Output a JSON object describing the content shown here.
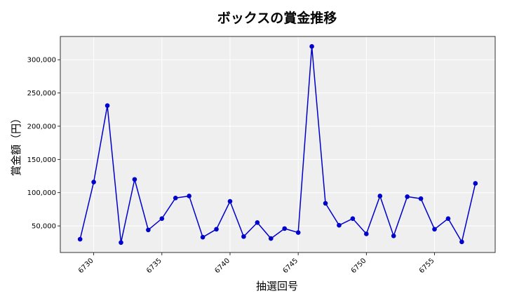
{
  "chart_data": {
    "type": "line",
    "title": "ボックスの賞金推移",
    "xlabel": "抽選回号",
    "ylabel": "賞金額（円）",
    "x": [
      6729,
      6730,
      6731,
      6732,
      6733,
      6734,
      6735,
      6736,
      6737,
      6738,
      6739,
      6740,
      6741,
      6742,
      6743,
      6744,
      6745,
      6746,
      6747,
      6748,
      6749,
      6750,
      6751,
      6752,
      6753,
      6754,
      6755,
      6756,
      6757,
      6758
    ],
    "series": [
      {
        "values": [
          30000,
          116000,
          231000,
          25000,
          120000,
          44000,
          61000,
          92000,
          95000,
          33000,
          45000,
          87000,
          34000,
          55000,
          31000,
          46000,
          40000,
          320000,
          84000,
          51000,
          61000,
          38000,
          95000,
          35000,
          94000,
          91000,
          45000,
          61000,
          26000,
          114000
        ]
      }
    ],
    "xlim": [
      6727.55,
      6759.45
    ],
    "ylim": [
      10000,
      335000
    ],
    "x_ticks": [
      6730,
      6735,
      6740,
      6745,
      6750,
      6755
    ],
    "x_tick_labels": [
      "6730",
      "6735",
      "6740",
      "6745",
      "6750",
      "6755"
    ],
    "y_ticks": [
      50000,
      100000,
      150000,
      200000,
      250000,
      300000
    ],
    "y_tick_labels": [
      "50,000",
      "100,000",
      "150,000",
      "200,000",
      "250,000",
      "300,000"
    ],
    "grid": true,
    "colors": {
      "line": "#0000cc",
      "marker": "#0000cc",
      "plot_bg": "#efefef",
      "grid": "#ffffff"
    }
  }
}
